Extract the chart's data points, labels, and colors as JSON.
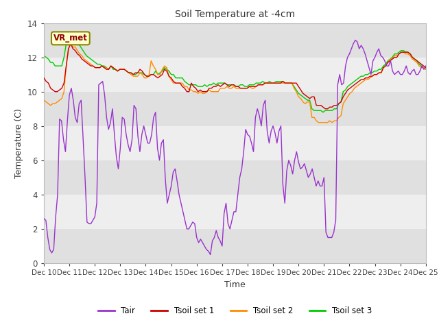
{
  "title": "Soil Temperature at -4cm",
  "xlabel": "Time",
  "ylabel": "Temperature (C)",
  "ylim": [
    0,
    14
  ],
  "yticks": [
    0,
    2,
    4,
    6,
    8,
    10,
    12,
    14
  ],
  "x_labels": [
    "Dec 10",
    "Dec 11",
    "Dec 12",
    "Dec 13",
    "Dec 14",
    "Dec 15",
    "Dec 16",
    "Dec 17",
    "Dec 18",
    "Dec 19",
    "Dec 20",
    "Dec 21",
    "Dec 22",
    "Dec 23",
    "Dec 24",
    "Dec 25"
  ],
  "annotation_text": "VR_met",
  "annotation_color": "#8B0000",
  "annotation_bg": "#FFFFCC",
  "background_color": "#ffffff",
  "band_colors": [
    "#e8e8e8",
    "#f4f4f4"
  ],
  "colors": {
    "Tair": "#9932CC",
    "Tsoil1": "#CC0000",
    "Tsoil2": "#FF8C00",
    "Tsoil3": "#00CC00"
  },
  "Tair": [
    2.6,
    2.5,
    1.5,
    0.8,
    0.6,
    0.8,
    2.7,
    4.0,
    8.4,
    8.3,
    7.2,
    6.5,
    8.3,
    9.8,
    10.2,
    9.5,
    8.5,
    8.2,
    9.3,
    9.5,
    7.3,
    5.0,
    2.4,
    2.3,
    2.3,
    2.5,
    2.7,
    3.5,
    10.4,
    10.5,
    10.6,
    9.8,
    8.5,
    7.8,
    8.2,
    9.0,
    7.5,
    6.2,
    5.5,
    6.7,
    8.5,
    8.4,
    7.5,
    6.9,
    6.5,
    7.2,
    9.2,
    9.0,
    7.4,
    6.5,
    7.5,
    8.0,
    7.5,
    7.0,
    7.0,
    7.5,
    8.5,
    8.8,
    6.7,
    6.0,
    7.0,
    7.2,
    4.9,
    3.5,
    4.0,
    4.5,
    5.3,
    5.5,
    4.8,
    4.0,
    3.5,
    3.0,
    2.5,
    2.0,
    2.0,
    2.2,
    2.4,
    2.3,
    1.5,
    1.2,
    1.4,
    1.2,
    1.0,
    0.8,
    0.7,
    0.5,
    1.3,
    1.5,
    1.9,
    1.5,
    1.3,
    1.0,
    2.9,
    3.5,
    2.3,
    2.0,
    2.5,
    3.0,
    3.0,
    4.0,
    5.0,
    5.5,
    6.5,
    7.8,
    7.5,
    7.4,
    7.0,
    6.5,
    8.5,
    9.0,
    8.6,
    8.0,
    9.2,
    9.5,
    7.7,
    7.0,
    7.7,
    8.0,
    7.6,
    7.0,
    7.7,
    8.0,
    4.6,
    3.5,
    5.4,
    6.0,
    5.7,
    5.2,
    6.0,
    6.5,
    5.9,
    5.5,
    5.6,
    5.8,
    5.4,
    5.0,
    5.2,
    5.5,
    5.0,
    4.5,
    4.8,
    4.5,
    4.5,
    5.0,
    1.8,
    1.5,
    1.5,
    1.5,
    1.8,
    2.5,
    10.4,
    11.0,
    10.4,
    10.5,
    11.5,
    12.0,
    12.2,
    12.5,
    12.8,
    13.0,
    12.9,
    12.5,
    12.7,
    12.5,
    12.2,
    11.8,
    11.4,
    11.0,
    11.8,
    12.0,
    12.3,
    12.5,
    12.1,
    12.0,
    11.8,
    11.5,
    11.5,
    11.8,
    11.2,
    11.0,
    11.1,
    11.2,
    11.0,
    11.0,
    11.2,
    11.5,
    11.1,
    11.0,
    11.2,
    11.3,
    11.0,
    11.0,
    11.2,
    11.5,
    11.3,
    11.5
  ],
  "Tsoil1": [
    10.8,
    10.6,
    10.5,
    10.2,
    10.1,
    10.0,
    10.0,
    10.1,
    10.2,
    10.5,
    11.5,
    12.5,
    12.8,
    12.5,
    12.4,
    12.2,
    12.1,
    11.9,
    11.8,
    11.7,
    11.6,
    11.5,
    11.5,
    11.4,
    11.4,
    11.4,
    11.5,
    11.4,
    11.3,
    11.3,
    11.5,
    11.4,
    11.3,
    11.2,
    11.3,
    11.3,
    11.3,
    11.2,
    11.1,
    11.1,
    11.0,
    11.1,
    11.1,
    11.3,
    11.2,
    11.0,
    10.9,
    10.9,
    11.0,
    11.0,
    10.9,
    10.8,
    10.9,
    11.0,
    11.3,
    11.2,
    10.9,
    10.8,
    10.6,
    10.5,
    10.5,
    10.5,
    10.3,
    10.2,
    10.0,
    10.0,
    10.5,
    10.3,
    10.2,
    10.0,
    10.1,
    10.0,
    10.0,
    10.0,
    10.2,
    10.2,
    10.3,
    10.3,
    10.4,
    10.3,
    10.4,
    10.5,
    10.4,
    10.3,
    10.4,
    10.4,
    10.3,
    10.3,
    10.2,
    10.2,
    10.2,
    10.2,
    10.3,
    10.3,
    10.3,
    10.3,
    10.4,
    10.4,
    10.4,
    10.5,
    10.5,
    10.5,
    10.5,
    10.5,
    10.5,
    10.5,
    10.5,
    10.6,
    10.5,
    10.5,
    10.5,
    10.5,
    10.5,
    10.5,
    10.3,
    10.1,
    9.9,
    9.8,
    9.7,
    9.6,
    9.7,
    9.7,
    9.2,
    9.2,
    9.2,
    9.1,
    9.0,
    9.0,
    9.1,
    9.1,
    9.2,
    9.2,
    9.3,
    9.4,
    9.7,
    9.9,
    10.1,
    10.2,
    10.3,
    10.4,
    10.5,
    10.6,
    10.7,
    10.7,
    10.8,
    10.8,
    10.9,
    10.9,
    11.0,
    11.0,
    11.1,
    11.1,
    11.4,
    11.5,
    11.7,
    11.8,
    11.9,
    12.0,
    12.0,
    12.2,
    12.3,
    12.3,
    12.3,
    12.3,
    12.2,
    12.0,
    11.9,
    11.8,
    11.7,
    11.6,
    11.5,
    11.4
  ],
  "Tsoil2": [
    9.5,
    9.4,
    9.3,
    9.2,
    9.3,
    9.3,
    9.4,
    9.5,
    9.6,
    10.0,
    11.5,
    12.5,
    12.8,
    12.6,
    12.6,
    12.4,
    12.2,
    12.1,
    11.9,
    11.8,
    11.7,
    11.6,
    11.5,
    11.4,
    11.4,
    11.4,
    11.5,
    11.4,
    11.4,
    11.3,
    11.5,
    11.4,
    11.3,
    11.2,
    11.3,
    11.3,
    11.3,
    11.2,
    11.1,
    11.0,
    10.9,
    10.9,
    10.9,
    11.1,
    11.0,
    10.8,
    10.8,
    10.9,
    11.8,
    11.5,
    11.3,
    11.0,
    11.0,
    11.3,
    11.5,
    11.4,
    10.9,
    10.7,
    10.5,
    10.5,
    10.5,
    10.5,
    10.5,
    10.3,
    10.3,
    10.1,
    10.1,
    10.0,
    10.0,
    9.9,
    10.0,
    9.9,
    9.9,
    10.0,
    10.1,
    10.0,
    10.0,
    10.0,
    10.0,
    10.2,
    10.2,
    10.2,
    10.3,
    10.2,
    10.2,
    10.3,
    10.2,
    10.2,
    10.2,
    10.2,
    10.2,
    10.2,
    10.3,
    10.2,
    10.2,
    10.3,
    10.4,
    10.4,
    10.4,
    10.5,
    10.5,
    10.5,
    10.5,
    10.5,
    10.5,
    10.5,
    10.5,
    10.5,
    10.5,
    10.5,
    10.5,
    10.5,
    10.2,
    10.0,
    9.7,
    9.6,
    9.4,
    9.3,
    9.4,
    9.4,
    8.5,
    8.5,
    8.3,
    8.2,
    8.2,
    8.2,
    8.2,
    8.2,
    8.3,
    8.2,
    8.3,
    8.3,
    8.5,
    8.6,
    9.3,
    9.5,
    9.7,
    9.9,
    10.0,
    10.2,
    10.3,
    10.4,
    10.5,
    10.6,
    10.7,
    10.7,
    10.8,
    10.9,
    11.0,
    11.0,
    11.1,
    11.1,
    11.4,
    11.5,
    11.7,
    11.9,
    11.9,
    12.1,
    12.1,
    12.2,
    12.3,
    12.3,
    12.2,
    12.2,
    12.1,
    11.9,
    11.8,
    11.7,
    11.5,
    11.4,
    11.4,
    11.3
  ],
  "Tsoil3": [
    12.1,
    12.0,
    11.9,
    11.7,
    11.7,
    11.5,
    11.5,
    11.5,
    11.5,
    12.0,
    12.8,
    13.1,
    13.3,
    13.1,
    13.0,
    12.8,
    12.7,
    12.5,
    12.3,
    12.1,
    12.0,
    11.9,
    11.8,
    11.7,
    11.6,
    11.6,
    11.5,
    11.5,
    11.4,
    11.3,
    11.5,
    11.3,
    11.3,
    11.2,
    11.3,
    11.3,
    11.3,
    11.2,
    11.1,
    11.1,
    11.0,
    11.0,
    11.1,
    11.1,
    11.1,
    11.0,
    10.9,
    10.9,
    11.0,
    11.0,
    11.2,
    11.0,
    11.1,
    11.2,
    11.4,
    11.3,
    11.2,
    11.0,
    11.0,
    10.8,
    10.8,
    10.8,
    10.8,
    10.6,
    10.5,
    10.4,
    10.4,
    10.4,
    10.4,
    10.3,
    10.3,
    10.3,
    10.4,
    10.3,
    10.4,
    10.4,
    10.5,
    10.4,
    10.5,
    10.5,
    10.5,
    10.5,
    10.4,
    10.4,
    10.4,
    10.4,
    10.3,
    10.3,
    10.4,
    10.4,
    10.3,
    10.3,
    10.4,
    10.4,
    10.4,
    10.5,
    10.5,
    10.5,
    10.6,
    10.5,
    10.5,
    10.6,
    10.5,
    10.5,
    10.6,
    10.6,
    10.6,
    10.6,
    10.5,
    10.5,
    10.5,
    10.5,
    10.3,
    10.1,
    9.9,
    9.8,
    9.7,
    9.6,
    9.5,
    9.5,
    9.0,
    8.9,
    8.9,
    8.9,
    8.9,
    8.8,
    8.9,
    8.9,
    8.9,
    8.9,
    9.0,
    9.0,
    9.3,
    9.4,
    10.0,
    10.1,
    10.3,
    10.4,
    10.5,
    10.6,
    10.7,
    10.8,
    10.9,
    10.9,
    11.0,
    11.0,
    11.1,
    11.1,
    11.2,
    11.2,
    11.3,
    11.3,
    11.5,
    11.6,
    11.8,
    11.9,
    12.0,
    12.2,
    12.2,
    12.3,
    12.4,
    12.4,
    12.3,
    12.3,
    12.2,
    12.0,
    11.9,
    11.8,
    11.6,
    11.5,
    11.4,
    11.3
  ]
}
